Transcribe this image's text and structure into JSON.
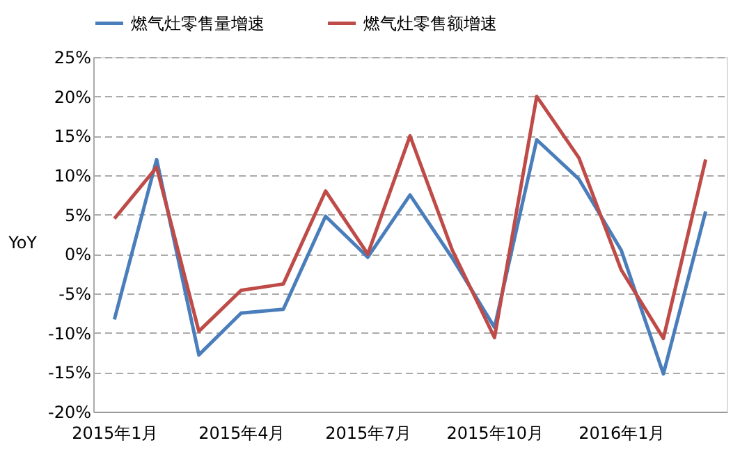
{
  "chart_data": {
    "type": "line",
    "ylabel": "YoY",
    "categories": [
      "2015年1月",
      null,
      null,
      "2015年4月",
      null,
      null,
      "2015年7月",
      null,
      null,
      "2015年10月",
      null,
      null,
      "2016年1月",
      null,
      null
    ],
    "series": [
      {
        "name": "燃气灶零售量增速",
        "color": "#4a7ebb",
        "values": [
          -8.3,
          12,
          -12.8,
          -7.5,
          -7,
          4.8,
          -0.4,
          7.5,
          -0.5,
          -9.3,
          14.5,
          9.5,
          0.5,
          -15.2,
          5.4
        ]
      },
      {
        "name": "燃气灶零售额增速",
        "color": "#be4b48",
        "values": [
          4.5,
          11,
          -9.8,
          -4.6,
          -3.8,
          8,
          0,
          15,
          0.5,
          -10.6,
          20,
          12.2,
          -2,
          -10.7,
          12
        ]
      }
    ],
    "ylim": [
      -20,
      25
    ],
    "yticks": [
      {
        "value": -20,
        "label": "-20%"
      },
      {
        "value": -15,
        "label": "-15%"
      },
      {
        "value": -10,
        "label": "-10%"
      },
      {
        "value": -5,
        "label": "-5%"
      },
      {
        "value": 0,
        "label": "0%"
      },
      {
        "value": 5,
        "label": "5%"
      },
      {
        "value": 10,
        "label": "10%"
      },
      {
        "value": 15,
        "label": "15%"
      },
      {
        "value": 20,
        "label": "20%"
      },
      {
        "value": 25,
        "label": "25%"
      }
    ],
    "grid": "y",
    "legend": "top",
    "marker": "none",
    "line_style": "solid"
  }
}
